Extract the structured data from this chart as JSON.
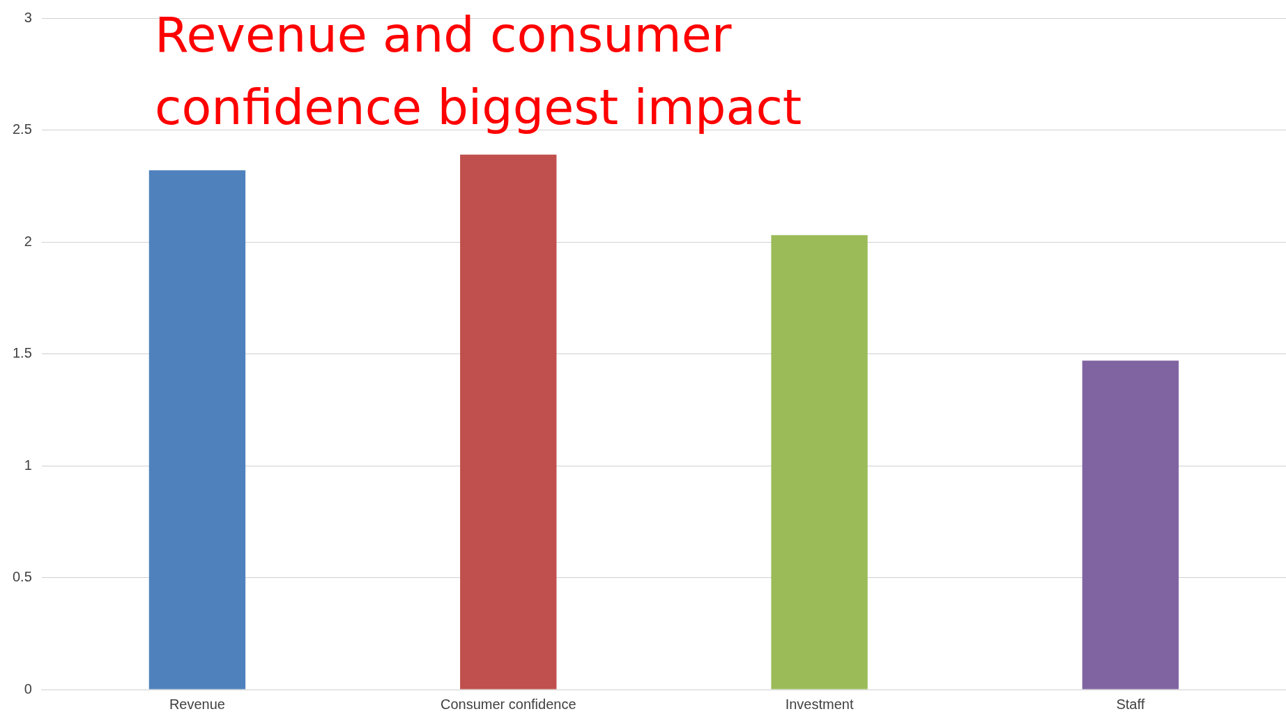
{
  "chart_data": {
    "type": "bar",
    "title": "Revenue and consumer confidence biggest impact",
    "categories": [
      "Revenue",
      "Consumer confidence",
      "Investment",
      "Staff"
    ],
    "values": [
      2.32,
      2.39,
      2.03,
      1.47
    ],
    "colors": [
      "#4f81bd",
      "#c0504d",
      "#9bbb59",
      "#8064a2"
    ],
    "ylim": [
      0,
      3
    ],
    "yticks": [
      0,
      0.5,
      1,
      1.5,
      2,
      2.5,
      3
    ],
    "grid": "y",
    "legend": false
  }
}
